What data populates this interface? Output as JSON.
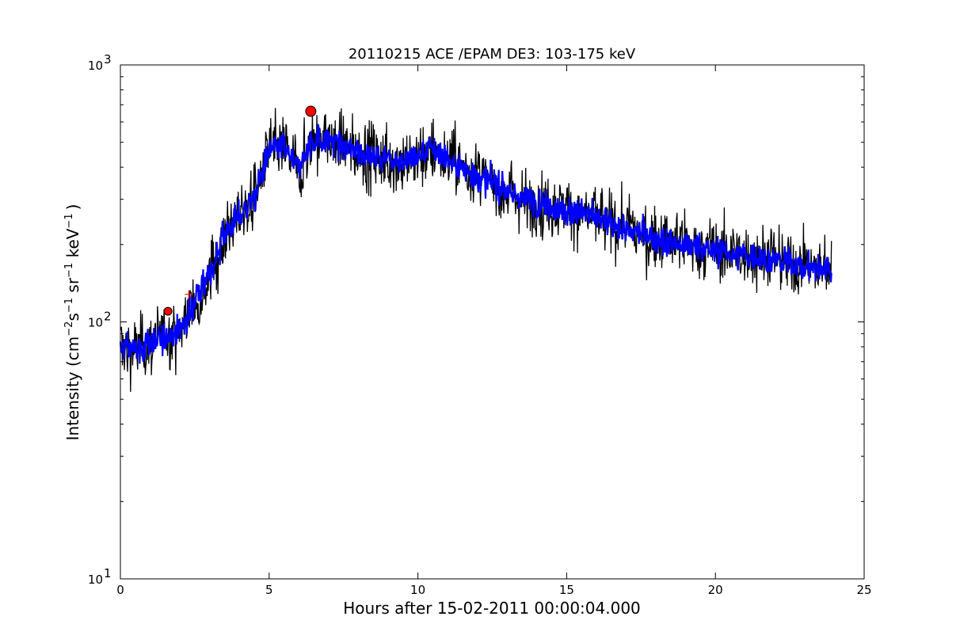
{
  "chart_data": {
    "type": "line",
    "title": "20110215 ACE /EPAM DE3: 103-175 keV",
    "xlabel": "Hours after 15-02-2011 00:00:04.000",
    "ylabel_parts": {
      "prefix": "Intensity (cm",
      "sup1": "−2",
      "mid1": "s",
      "sup2": "−1",
      "mid2": " sr",
      "sup3": "−1",
      "mid3": " keV",
      "sup4": "−1",
      "suffix": ")"
    },
    "xlim": [
      0,
      25
    ],
    "ylim": [
      10,
      1000
    ],
    "yscale": "log",
    "grid": false,
    "x_ticks": [
      0,
      5,
      10,
      15,
      20,
      25
    ],
    "y_ticks": [
      {
        "value": 10,
        "base": "10",
        "exp": "1"
      },
      {
        "value": 100,
        "base": "10",
        "exp": "2"
      },
      {
        "value": 1000,
        "base": "10",
        "exp": "3"
      }
    ],
    "series_trend": {
      "x": [
        0.0,
        0.5,
        1.0,
        1.5,
        2.0,
        2.5,
        3.0,
        3.5,
        4.0,
        4.5,
        5.0,
        5.5,
        6.0,
        6.5,
        7.0,
        7.5,
        8.0,
        8.5,
        9.0,
        9.5,
        10.0,
        10.5,
        11.0,
        11.5,
        12.0,
        12.5,
        13.0,
        13.5,
        14.0,
        14.5,
        15.0,
        15.5,
        16.0,
        16.5,
        17.0,
        17.5,
        18.0,
        18.5,
        19.0,
        19.5,
        20.0,
        20.5,
        21.0,
        21.5,
        22.0,
        22.5,
        23.0,
        23.5,
        23.9
      ],
      "y": [
        80,
        78,
        82,
        88,
        92,
        120,
        150,
        220,
        260,
        300,
        470,
        480,
        390,
        520,
        510,
        480,
        460,
        440,
        430,
        420,
        440,
        470,
        430,
        400,
        370,
        350,
        320,
        300,
        290,
        280,
        270,
        265,
        255,
        240,
        230,
        220,
        210,
        205,
        200,
        195,
        190,
        185,
        180,
        178,
        175,
        170,
        165,
        160,
        165
      ]
    },
    "raw_noise_spread": 0.1,
    "smooth_noise_spread": 0.045,
    "raw_color": "#000000",
    "smooth_color": "#0000ff",
    "markers": [
      {
        "x": 1.6,
        "y": 110,
        "shape": "circle",
        "color": "#ff0000",
        "size": "small"
      },
      {
        "x": 6.4,
        "y": 660,
        "shape": "circle",
        "color": "#ff0000",
        "size": "large"
      },
      {
        "x": 2.3,
        "y": 128,
        "shape": "plus",
        "color": "#ff0000",
        "size": "small"
      }
    ]
  }
}
